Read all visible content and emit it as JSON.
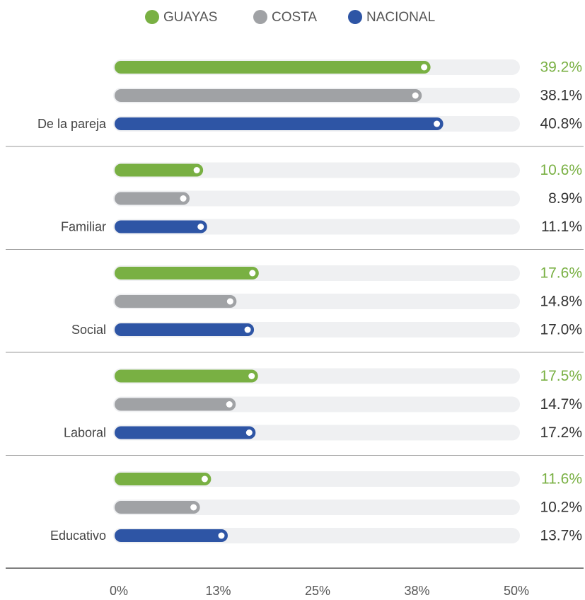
{
  "chart_data": {
    "type": "bar",
    "orientation": "horizontal",
    "categories": [
      "De la pareja",
      "Familiar",
      "Social",
      "Laboral",
      "Educativo"
    ],
    "series": [
      {
        "name": "GUAYAS",
        "color": "#79b043",
        "values": [
          39.2,
          10.6,
          17.6,
          17.5,
          11.6
        ],
        "value_labels": [
          "39.2%",
          "10.6%",
          "17.6%",
          "17.5%",
          "11.6%"
        ]
      },
      {
        "name": "COSTA",
        "color": "#a0a2a5",
        "values": [
          38.1,
          8.9,
          14.8,
          14.7,
          10.2
        ],
        "value_labels": [
          "38.1%",
          "8.9%",
          "14.8%",
          "14.7%",
          "10.2%"
        ]
      },
      {
        "name": "NACIONAL",
        "color": "#2e55a5",
        "values": [
          40.8,
          11.1,
          17.0,
          17.2,
          13.7
        ],
        "value_labels": [
          "40.8%",
          "11.1%",
          "17.0%",
          "17.2%",
          "13.7%"
        ]
      }
    ],
    "xlim": [
      0,
      50
    ],
    "xticks": [
      {
        "value": 0,
        "label": "0%"
      },
      {
        "value": 12.5,
        "label": "13%"
      },
      {
        "value": 25,
        "label": "25%"
      },
      {
        "value": 37.5,
        "label": "38%"
      },
      {
        "value": 50,
        "label": "50%"
      }
    ],
    "legend": "top"
  }
}
